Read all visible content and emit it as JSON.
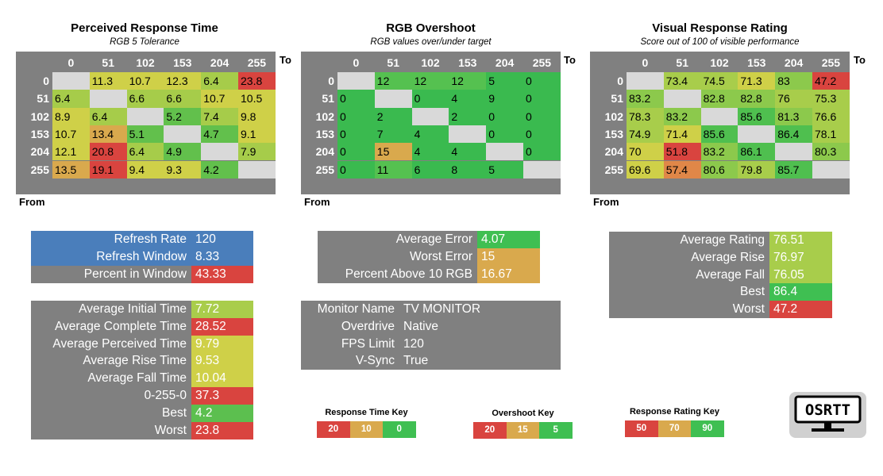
{
  "titles": {
    "perceived": {
      "title": "Perceived Response Time",
      "subtitle": "RGB 5 Tolerance"
    },
    "overshoot": {
      "title": "RGB Overshoot",
      "subtitle": "RGB values over/under target"
    },
    "rating": {
      "title": "Visual Response Rating",
      "subtitle": "Score out of 100 of visible performance"
    }
  },
  "axis": {
    "to": "To",
    "from": "From"
  },
  "headers": [
    "0",
    "51",
    "102",
    "153",
    "204",
    "255"
  ],
  "perceived_table": [
    [
      "",
      "11.3",
      "10.7",
      "12.3",
      "6.4",
      "23.8"
    ],
    [
      "6.4",
      "",
      "6.6",
      "6.6",
      "10.7",
      "10.5"
    ],
    [
      "8.9",
      "6.4",
      "",
      "5.2",
      "7.4",
      "9.8"
    ],
    [
      "10.7",
      "13.4",
      "5.1",
      "",
      "4.7",
      "9.1"
    ],
    [
      "12.1",
      "20.8",
      "6.4",
      "4.9",
      "",
      "7.9"
    ],
    [
      "13.5",
      "19.1",
      "9.4",
      "9.3",
      "4.2",
      ""
    ]
  ],
  "overshoot_table": [
    [
      "",
      "12",
      "12",
      "12",
      "5",
      "0"
    ],
    [
      "0",
      "",
      "0",
      "4",
      "9",
      "0"
    ],
    [
      "0",
      "2",
      "",
      "2",
      "0",
      "0"
    ],
    [
      "0",
      "7",
      "4",
      "",
      "0",
      "0"
    ],
    [
      "0",
      "15",
      "4",
      "4",
      "",
      "0"
    ],
    [
      "0",
      "11",
      "6",
      "8",
      "5",
      ""
    ]
  ],
  "rating_table": [
    [
      "",
      "73.4",
      "74.5",
      "71.3",
      "83",
      "47.2"
    ],
    [
      "83.2",
      "",
      "82.8",
      "82.8",
      "76",
      "75.3"
    ],
    [
      "78.3",
      "83.2",
      "",
      "85.6",
      "81.3",
      "76.6"
    ],
    [
      "74.9",
      "71.4",
      "85.6",
      "",
      "86.4",
      "78.1"
    ],
    [
      "70",
      "51.8",
      "83.2",
      "86.1",
      "",
      "80.3"
    ],
    [
      "69.6",
      "57.4",
      "80.6",
      "79.8",
      "85.7",
      ""
    ]
  ],
  "refresh_panel": [
    {
      "label": "Refresh Rate",
      "value": "120"
    },
    {
      "label": "Refresh Window",
      "value": "8.33"
    },
    {
      "label": "Percent in Window",
      "value": "43.33"
    }
  ],
  "time_panel": [
    {
      "label": "Average Initial Time",
      "value": "7.72"
    },
    {
      "label": "Average Complete Time",
      "value": "28.52"
    },
    {
      "label": "Average Perceived Time",
      "value": "9.79"
    },
    {
      "label": "Average Rise Time",
      "value": "9.53"
    },
    {
      "label": "Average Fall Time",
      "value": "10.04"
    },
    {
      "label": "0-255-0",
      "value": "37.3"
    },
    {
      "label": "Best",
      "value": "4.2"
    },
    {
      "label": "Worst",
      "value": "23.8"
    }
  ],
  "error_panel": [
    {
      "label": "Average Error",
      "value": "4.07"
    },
    {
      "label": "Worst Error",
      "value": "15"
    },
    {
      "label": "Percent Above 10 RGB",
      "value": "16.67"
    }
  ],
  "monitor_panel": [
    {
      "label": "Monitor Name",
      "value": "TV MONITOR"
    },
    {
      "label": "Overdrive",
      "value": "Native"
    },
    {
      "label": "FPS Limit",
      "value": "120"
    },
    {
      "label": "V-Sync",
      "value": "True"
    }
  ],
  "rating_panel": [
    {
      "label": "Average Rating",
      "value": "76.51"
    },
    {
      "label": "Average Rise",
      "value": "76.97"
    },
    {
      "label": "Average Fall",
      "value": "76.05"
    },
    {
      "label": "Best",
      "value": "86.4"
    },
    {
      "label": "Worst",
      "value": "47.2"
    }
  ],
  "keys": {
    "response": {
      "title": "Response Time Key",
      "values": [
        "20",
        "10",
        "0"
      ]
    },
    "overshoot": {
      "title": "Overshoot Key",
      "values": [
        "20",
        "15",
        "5"
      ]
    },
    "rating": {
      "title": "Response Rating Key",
      "values": [
        "50",
        "70",
        "90"
      ]
    }
  },
  "logo": {
    "text": "OSRTT"
  },
  "colors": {
    "header_gray": "#808080",
    "diag_gray": "#d9d9d9",
    "blue": "#4a7ebb",
    "red": "#d9443f",
    "amber": "#d9a94d",
    "yellow": "#cfd048",
    "green": "#3fbf52"
  }
}
